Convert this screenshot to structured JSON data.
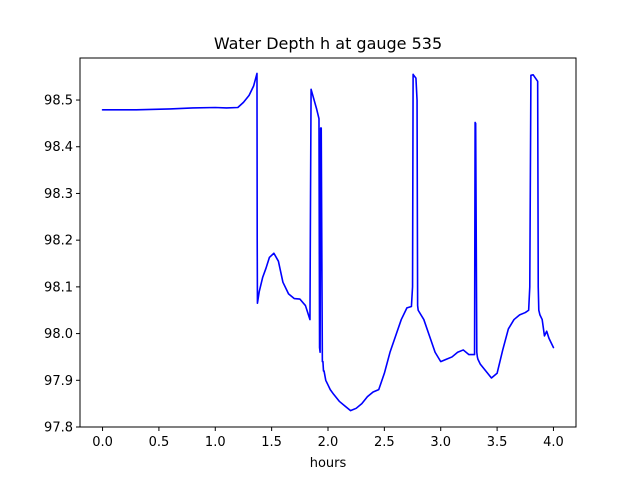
{
  "chart_data": {
    "type": "line",
    "title": "Water Depth h at gauge 535",
    "xlabel": "hours",
    "ylabel": "",
    "xlim": [
      -0.2,
      4.2
    ],
    "ylim": [
      97.8,
      98.59
    ],
    "xticks": [
      0.0,
      0.5,
      1.0,
      1.5,
      2.0,
      2.5,
      3.0,
      3.5,
      4.0
    ],
    "xtick_labels": [
      "0.0",
      "0.5",
      "1.0",
      "1.5",
      "2.0",
      "2.5",
      "3.0",
      "3.5",
      "4.0"
    ],
    "yticks": [
      97.8,
      97.9,
      98.0,
      98.1,
      98.2,
      98.3,
      98.4,
      98.5
    ],
    "ytick_labels": [
      "97.8",
      "97.9",
      "98.0",
      "98.1",
      "98.2",
      "98.3",
      "98.4",
      "98.5"
    ],
    "grid": false,
    "series": [
      {
        "color": "#0000ff",
        "x": [
          0.0,
          0.3,
          0.6,
          0.8,
          1.0,
          1.1,
          1.2,
          1.25,
          1.3,
          1.34,
          1.37,
          1.372,
          1.374,
          1.39,
          1.42,
          1.45,
          1.48,
          1.52,
          1.56,
          1.6,
          1.65,
          1.7,
          1.75,
          1.8,
          1.84,
          1.845,
          1.85,
          1.9,
          1.92,
          1.925,
          1.93,
          1.935,
          1.94,
          1.95,
          1.955,
          1.96,
          1.965,
          1.98,
          2.0,
          2.02,
          2.05,
          2.1,
          2.15,
          2.2,
          2.25,
          2.3,
          2.35,
          2.4,
          2.45,
          2.5,
          2.55,
          2.6,
          2.65,
          2.7,
          2.74,
          2.75,
          2.755,
          2.76,
          2.78,
          2.79,
          2.795,
          2.8,
          2.85,
          2.9,
          2.95,
          3.0,
          3.05,
          3.1,
          3.15,
          3.2,
          3.25,
          3.28,
          3.3,
          3.305,
          3.31,
          3.32,
          3.325,
          3.33,
          3.35,
          3.4,
          3.45,
          3.5,
          3.55,
          3.6,
          3.65,
          3.7,
          3.75,
          3.78,
          3.79,
          3.8,
          3.82,
          3.86,
          3.865,
          3.87,
          3.88,
          3.9,
          3.92,
          3.94,
          3.96,
          4.0
        ],
        "y": [
          98.479,
          98.479,
          98.481,
          98.483,
          98.484,
          98.483,
          98.484,
          98.495,
          98.51,
          98.53,
          98.557,
          98.2,
          98.065,
          98.09,
          98.12,
          98.14,
          98.163,
          98.172,
          98.155,
          98.11,
          98.085,
          98.075,
          98.074,
          98.06,
          98.03,
          98.3,
          98.523,
          98.48,
          98.46,
          97.97,
          97.96,
          98.44,
          98.44,
          97.94,
          97.94,
          97.92,
          97.92,
          97.9,
          97.89,
          97.88,
          97.87,
          97.855,
          97.845,
          97.835,
          97.84,
          97.85,
          97.865,
          97.875,
          97.88,
          97.915,
          97.96,
          97.995,
          98.03,
          98.055,
          98.058,
          98.1,
          98.555,
          98.553,
          98.547,
          98.5,
          98.06,
          98.05,
          98.03,
          97.995,
          97.96,
          97.94,
          97.945,
          97.95,
          97.96,
          97.965,
          97.955,
          97.955,
          97.955,
          98.452,
          98.45,
          97.96,
          97.95,
          97.945,
          97.935,
          97.92,
          97.905,
          97.915,
          97.965,
          98.01,
          98.03,
          98.04,
          98.045,
          98.05,
          98.1,
          98.553,
          98.554,
          98.54,
          98.1,
          98.05,
          98.04,
          98.03,
          97.995,
          98.005,
          97.99,
          97.97
        ]
      }
    ]
  }
}
